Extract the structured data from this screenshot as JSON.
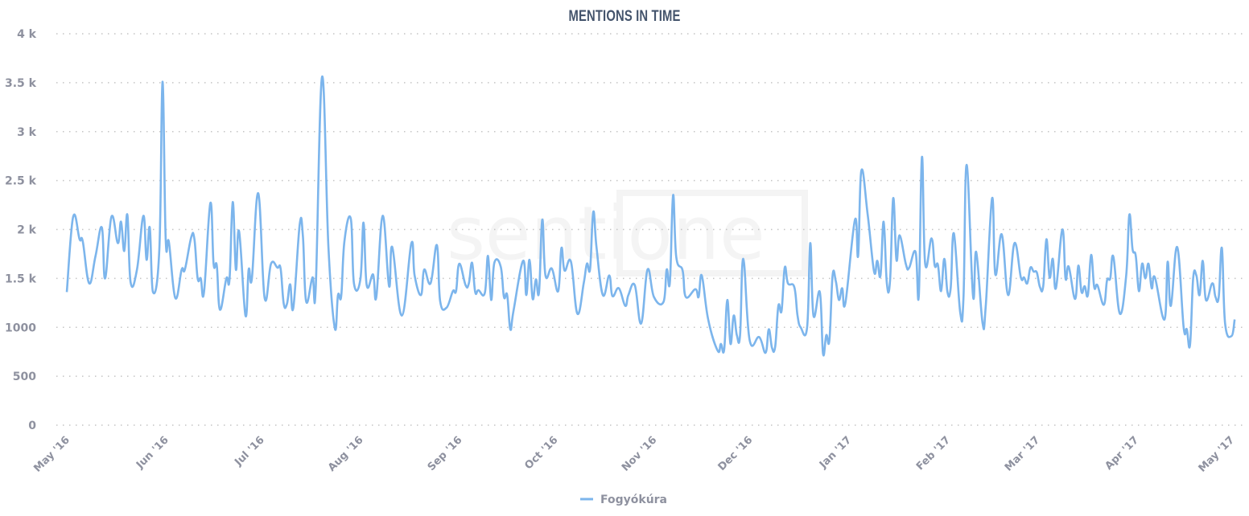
{
  "watermark": "sentione",
  "chart_data": {
    "type": "line",
    "title": "MENTIONS IN TIME",
    "xlabel": "",
    "ylabel": "",
    "ylim": [
      0,
      4000
    ],
    "yticks": [
      0,
      500,
      1000,
      1500,
      2000,
      2500,
      3000,
      3500,
      4000
    ],
    "ytick_labels": [
      "0",
      "500",
      "1000",
      "1.5 k",
      "2 k",
      "2.5 k",
      "3 k",
      "3.5 k",
      "4 k"
    ],
    "xlim": [
      "2016-05-01",
      "2017-05-02"
    ],
    "xticks": [
      "2016-05-01",
      "2016-06-01",
      "2016-07-01",
      "2016-08-01",
      "2016-09-01",
      "2016-10-01",
      "2016-11-01",
      "2016-12-01",
      "2017-01-01",
      "2017-02-01",
      "2017-03-01",
      "2017-04-01",
      "2017-05-01"
    ],
    "xtick_labels": [
      "May '16",
      "Jun '16",
      "Jul '16",
      "Aug '16",
      "Sep '16",
      "Oct '16",
      "Nov '16",
      "Dec '16",
      "Jan '17",
      "Feb '17",
      "Mar '17",
      "Apr '17",
      "May '17"
    ],
    "grid": true,
    "legend_position": "bottom",
    "series": [
      {
        "name": "Fogyókúra",
        "color": "#7cb5ec",
        "points": [
          [
            "2016-05-01",
            1360
          ],
          [
            "2016-05-03",
            2130
          ],
          [
            "2016-05-05",
            1900
          ],
          [
            "2016-05-06",
            1880
          ],
          [
            "2016-05-08",
            1450
          ],
          [
            "2016-05-10",
            1730
          ],
          [
            "2016-05-12",
            2020
          ],
          [
            "2016-05-13",
            1500
          ],
          [
            "2016-05-15",
            2130
          ],
          [
            "2016-05-17",
            1860
          ],
          [
            "2016-05-18",
            2080
          ],
          [
            "2016-05-19",
            1780
          ],
          [
            "2016-05-20",
            2150
          ],
          [
            "2016-05-21",
            1460
          ],
          [
            "2016-05-23",
            1590
          ],
          [
            "2016-05-25",
            2140
          ],
          [
            "2016-05-26",
            1690
          ],
          [
            "2016-05-27",
            2020
          ],
          [
            "2016-05-28",
            1360
          ],
          [
            "2016-05-30",
            1800
          ],
          [
            "2016-05-31",
            3510
          ],
          [
            "2016-06-01",
            1900
          ],
          [
            "2016-06-02",
            1870
          ],
          [
            "2016-06-04",
            1300
          ],
          [
            "2016-06-06",
            1590
          ],
          [
            "2016-06-07",
            1590
          ],
          [
            "2016-06-09",
            1920
          ],
          [
            "2016-06-10",
            1900
          ],
          [
            "2016-06-11",
            1500
          ],
          [
            "2016-06-12",
            1500
          ],
          [
            "2016-06-13",
            1360
          ],
          [
            "2016-06-15",
            2270
          ],
          [
            "2016-06-16",
            1650
          ],
          [
            "2016-06-17",
            1630
          ],
          [
            "2016-06-18",
            1180
          ],
          [
            "2016-06-20",
            1500
          ],
          [
            "2016-06-21",
            1490
          ],
          [
            "2016-06-22",
            2280
          ],
          [
            "2016-06-23",
            1590
          ],
          [
            "2016-06-24",
            1980
          ],
          [
            "2016-06-26",
            1120
          ],
          [
            "2016-06-27",
            1590
          ],
          [
            "2016-06-28",
            1500
          ],
          [
            "2016-06-30",
            2370
          ],
          [
            "2016-07-02",
            1300
          ],
          [
            "2016-07-04",
            1650
          ],
          [
            "2016-07-06",
            1610
          ],
          [
            "2016-07-07",
            1600
          ],
          [
            "2016-07-08",
            1240
          ],
          [
            "2016-07-09",
            1240
          ],
          [
            "2016-07-10",
            1440
          ],
          [
            "2016-07-11",
            1200
          ],
          [
            "2016-07-13",
            2050
          ],
          [
            "2016-07-14",
            1930
          ],
          [
            "2016-07-15",
            1265
          ],
          [
            "2016-07-17",
            1510
          ],
          [
            "2016-07-18",
            1400
          ],
          [
            "2016-07-20",
            3560
          ],
          [
            "2016-07-22",
            1820
          ],
          [
            "2016-07-24",
            990
          ],
          [
            "2016-07-25",
            1330
          ],
          [
            "2016-07-26",
            1320
          ],
          [
            "2016-07-27",
            1880
          ],
          [
            "2016-07-29",
            2110
          ],
          [
            "2016-07-30",
            1450
          ],
          [
            "2016-08-01",
            1490
          ],
          [
            "2016-08-02",
            2070
          ],
          [
            "2016-08-03",
            1430
          ],
          [
            "2016-08-05",
            1540
          ],
          [
            "2016-08-06",
            1310
          ],
          [
            "2016-08-08",
            2140
          ],
          [
            "2016-08-10",
            1420
          ],
          [
            "2016-08-11",
            1820
          ],
          [
            "2016-08-14",
            1120
          ],
          [
            "2016-08-17",
            1860
          ],
          [
            "2016-08-18",
            1530
          ],
          [
            "2016-08-20",
            1330
          ],
          [
            "2016-08-21",
            1590
          ],
          [
            "2016-08-23",
            1450
          ],
          [
            "2016-08-25",
            1840
          ],
          [
            "2016-08-26",
            1270
          ],
          [
            "2016-08-28",
            1200
          ],
          [
            "2016-08-30",
            1370
          ],
          [
            "2016-08-31",
            1370
          ],
          [
            "2016-09-01",
            1650
          ],
          [
            "2016-09-03",
            1430
          ],
          [
            "2016-09-04",
            1450
          ],
          [
            "2016-09-05",
            1660
          ],
          [
            "2016-09-06",
            1360
          ],
          [
            "2016-09-07",
            1380
          ],
          [
            "2016-09-09",
            1350
          ],
          [
            "2016-09-10",
            1730
          ],
          [
            "2016-09-11",
            1280
          ],
          [
            "2016-09-12",
            1660
          ],
          [
            "2016-09-14",
            1620
          ],
          [
            "2016-09-15",
            1310
          ],
          [
            "2016-09-16",
            1330
          ],
          [
            "2016-09-17",
            980
          ],
          [
            "2016-09-18",
            1170
          ],
          [
            "2016-09-21",
            1680
          ],
          [
            "2016-09-22",
            1330
          ],
          [
            "2016-09-23",
            1690
          ],
          [
            "2016-09-24",
            1290
          ],
          [
            "2016-09-25",
            1490
          ],
          [
            "2016-09-26",
            1360
          ],
          [
            "2016-09-27",
            2100
          ],
          [
            "2016-09-28",
            1530
          ],
          [
            "2016-09-30",
            1600
          ],
          [
            "2016-10-02",
            1370
          ],
          [
            "2016-10-03",
            1810
          ],
          [
            "2016-10-04",
            1580
          ],
          [
            "2016-10-06",
            1670
          ],
          [
            "2016-10-08",
            1140
          ],
          [
            "2016-10-10",
            1450
          ],
          [
            "2016-10-11",
            1650
          ],
          [
            "2016-10-12",
            1600
          ],
          [
            "2016-10-13",
            2180
          ],
          [
            "2016-10-14",
            1820
          ],
          [
            "2016-10-16",
            1330
          ],
          [
            "2016-10-18",
            1530
          ],
          [
            "2016-10-19",
            1320
          ],
          [
            "2016-10-21",
            1400
          ],
          [
            "2016-10-23",
            1220
          ],
          [
            "2016-10-24",
            1330
          ],
          [
            "2016-10-26",
            1430
          ],
          [
            "2016-10-28",
            1040
          ],
          [
            "2016-10-30",
            1590
          ],
          [
            "2016-11-01",
            1310
          ],
          [
            "2016-11-04",
            1260
          ],
          [
            "2016-11-05",
            1590
          ],
          [
            "2016-11-06",
            1460
          ],
          [
            "2016-11-07",
            2350
          ],
          [
            "2016-11-08",
            1720
          ],
          [
            "2016-11-10",
            1580
          ],
          [
            "2016-11-11",
            1310
          ],
          [
            "2016-11-14",
            1390
          ],
          [
            "2016-11-15",
            1310
          ],
          [
            "2016-11-16",
            1530
          ],
          [
            "2016-11-18",
            1080
          ],
          [
            "2016-11-21",
            760
          ],
          [
            "2016-11-22",
            830
          ],
          [
            "2016-11-23",
            770
          ],
          [
            "2016-11-24",
            1280
          ],
          [
            "2016-11-25",
            830
          ],
          [
            "2016-11-26",
            1120
          ],
          [
            "2016-11-27",
            920
          ],
          [
            "2016-11-28",
            920
          ],
          [
            "2016-11-29",
            1700
          ],
          [
            "2016-12-01",
            870
          ],
          [
            "2016-12-04",
            900
          ],
          [
            "2016-12-06",
            740
          ],
          [
            "2016-12-07",
            980
          ],
          [
            "2016-12-08",
            790
          ],
          [
            "2016-12-09",
            800
          ],
          [
            "2016-12-10",
            1220
          ],
          [
            "2016-12-11",
            1170
          ],
          [
            "2016-12-12",
            1610
          ],
          [
            "2016-12-13",
            1450
          ],
          [
            "2016-12-15",
            1410
          ],
          [
            "2016-12-16",
            1120
          ],
          [
            "2016-12-17",
            1000
          ],
          [
            "2016-12-19",
            1000
          ],
          [
            "2016-12-20",
            1860
          ],
          [
            "2016-12-21",
            1120
          ],
          [
            "2016-12-23",
            1360
          ],
          [
            "2016-12-24",
            730
          ],
          [
            "2016-12-25",
            920
          ],
          [
            "2016-12-26",
            870
          ],
          [
            "2016-12-27",
            1530
          ],
          [
            "2016-12-28",
            1470
          ],
          [
            "2016-12-29",
            1280
          ],
          [
            "2016-12-30",
            1400
          ],
          [
            "2016-12-31",
            1250
          ],
          [
            "2017-01-03",
            2100
          ],
          [
            "2017-01-04",
            1730
          ],
          [
            "2017-01-05",
            2600
          ],
          [
            "2017-01-07",
            2150
          ],
          [
            "2017-01-09",
            1570
          ],
          [
            "2017-01-10",
            1680
          ],
          [
            "2017-01-11",
            1530
          ],
          [
            "2017-01-12",
            2080
          ],
          [
            "2017-01-13",
            1450
          ],
          [
            "2017-01-14",
            1480
          ],
          [
            "2017-01-15",
            2320
          ],
          [
            "2017-01-16",
            1690
          ],
          [
            "2017-01-17",
            1940
          ],
          [
            "2017-01-19",
            1640
          ],
          [
            "2017-01-20",
            1610
          ],
          [
            "2017-01-22",
            1770
          ],
          [
            "2017-01-23",
            1320
          ],
          [
            "2017-01-24",
            2740
          ],
          [
            "2017-01-25",
            1650
          ],
          [
            "2017-01-27",
            1910
          ],
          [
            "2017-01-28",
            1630
          ],
          [
            "2017-01-29",
            1640
          ],
          [
            "2017-01-30",
            1370
          ],
          [
            "2017-01-31",
            1700
          ],
          [
            "2017-02-01",
            1360
          ],
          [
            "2017-02-02",
            1400
          ],
          [
            "2017-02-03",
            1960
          ],
          [
            "2017-02-05",
            1150
          ],
          [
            "2017-02-06",
            1300
          ],
          [
            "2017-02-07",
            2660
          ],
          [
            "2017-02-09",
            1320
          ],
          [
            "2017-02-10",
            1770
          ],
          [
            "2017-02-12",
            1040
          ],
          [
            "2017-02-13",
            1220
          ],
          [
            "2017-02-15",
            2320
          ],
          [
            "2017-02-16",
            1540
          ],
          [
            "2017-02-18",
            1950
          ],
          [
            "2017-02-20",
            1330
          ],
          [
            "2017-02-22",
            1860
          ],
          [
            "2017-02-24",
            1510
          ],
          [
            "2017-02-25",
            1510
          ],
          [
            "2017-02-26",
            1450
          ],
          [
            "2017-02-27",
            1610
          ],
          [
            "2017-02-28",
            1570
          ],
          [
            "2017-03-01",
            1560
          ],
          [
            "2017-03-02",
            1410
          ],
          [
            "2017-03-03",
            1420
          ],
          [
            "2017-03-04",
            1900
          ],
          [
            "2017-03-05",
            1510
          ],
          [
            "2017-03-06",
            1700
          ],
          [
            "2017-03-07",
            1400
          ],
          [
            "2017-03-09",
            2000
          ],
          [
            "2017-03-10",
            1500
          ],
          [
            "2017-03-11",
            1620
          ],
          [
            "2017-03-13",
            1290
          ],
          [
            "2017-03-14",
            1630
          ],
          [
            "2017-03-15",
            1360
          ],
          [
            "2017-03-16",
            1420
          ],
          [
            "2017-03-17",
            1330
          ],
          [
            "2017-03-18",
            1740
          ],
          [
            "2017-03-19",
            1410
          ],
          [
            "2017-03-20",
            1430
          ],
          [
            "2017-03-22",
            1230
          ],
          [
            "2017-03-23",
            1480
          ],
          [
            "2017-03-24",
            1500
          ],
          [
            "2017-03-25",
            1720
          ],
          [
            "2017-03-27",
            1140
          ],
          [
            "2017-03-29",
            1530
          ],
          [
            "2017-03-30",
            2150
          ],
          [
            "2017-03-31",
            1800
          ],
          [
            "2017-04-01",
            1730
          ],
          [
            "2017-04-02",
            1370
          ],
          [
            "2017-04-03",
            1650
          ],
          [
            "2017-04-04",
            1500
          ],
          [
            "2017-04-05",
            1650
          ],
          [
            "2017-04-06",
            1400
          ],
          [
            "2017-04-07",
            1510
          ],
          [
            "2017-04-10",
            1080
          ],
          [
            "2017-04-11",
            1670
          ],
          [
            "2017-04-12",
            1220
          ],
          [
            "2017-04-14",
            1820
          ],
          [
            "2017-04-16",
            1000
          ],
          [
            "2017-04-17",
            980
          ],
          [
            "2017-04-18",
            820
          ],
          [
            "2017-04-19",
            1500
          ],
          [
            "2017-04-20",
            1530
          ],
          [
            "2017-04-21",
            1330
          ],
          [
            "2017-04-22",
            1680
          ],
          [
            "2017-04-23",
            1280
          ],
          [
            "2017-04-25",
            1450
          ],
          [
            "2017-04-26",
            1310
          ],
          [
            "2017-04-27",
            1310
          ],
          [
            "2017-04-28",
            1810
          ],
          [
            "2017-04-29",
            1040
          ],
          [
            "2017-05-01",
            910
          ],
          [
            "2017-05-02",
            1080
          ]
        ]
      }
    ]
  }
}
